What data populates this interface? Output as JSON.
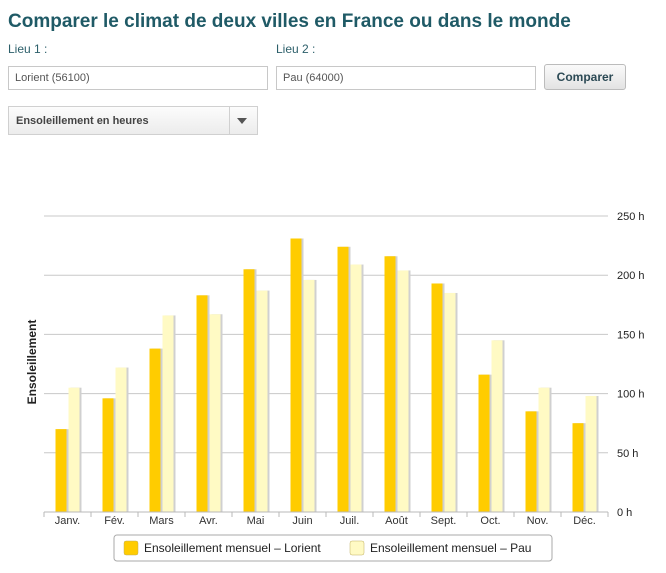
{
  "page": {
    "title": "Comparer le climat de deux villes en France ou dans le monde",
    "lieu1_label": "Lieu 1 :",
    "lieu1_value": "Lorient (56100)",
    "lieu2_label": "Lieu 2 :",
    "lieu2_value": "Pau (64000)",
    "compare_button": "Comparer",
    "indicator_select": "Ensoleillement en heures"
  },
  "chart_data": {
    "type": "bar",
    "title": "",
    "xlabel": "",
    "ylabel": "Ensoleillement",
    "y_axis_side": "right",
    "ylim": [
      0,
      250
    ],
    "yticks": [
      0,
      50,
      100,
      150,
      200,
      250
    ],
    "ytick_labels": [
      "0 h",
      "50 h",
      "100 h",
      "150 h",
      "200 h",
      "250 h"
    ],
    "grid": true,
    "legend_position": "bottom",
    "categories": [
      "Janv.",
      "Fév.",
      "Mars",
      "Avr.",
      "Mai",
      "Juin",
      "Juil.",
      "Août",
      "Sept.",
      "Oct.",
      "Nov.",
      "Déc."
    ],
    "series": [
      {
        "name": "Ensoleillement mensuel – Lorient",
        "color": "#ffcc00",
        "values": [
          70,
          96,
          138,
          183,
          205,
          231,
          224,
          216,
          193,
          116,
          85,
          75
        ]
      },
      {
        "name": "Ensoleillement mensuel – Pau",
        "color": "#fffac4",
        "values": [
          105,
          122,
          166,
          167,
          187,
          196,
          209,
          204,
          185,
          145,
          105,
          98
        ]
      }
    ]
  }
}
